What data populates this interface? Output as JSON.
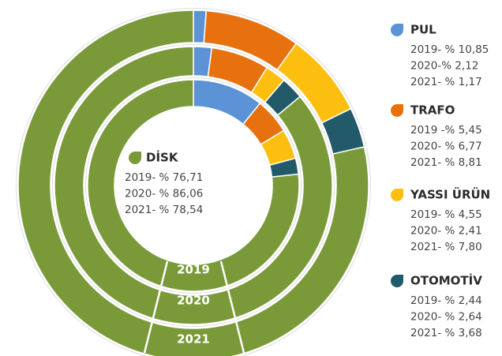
{
  "chart_data": {
    "type": "donut",
    "categories": [
      "2019",
      "2020",
      "2021"
    ],
    "series": [
      {
        "name": "PUL",
        "color": "#5b93d6",
        "values": [
          10.85,
          2.12,
          1.17
        ],
        "value_labels": [
          "2019- % 10,85",
          "2020-% 2,12",
          "2021- % 1,17"
        ]
      },
      {
        "name": "TRAFO",
        "color": "#e8710f",
        "values": [
          5.45,
          6.77,
          8.81
        ],
        "value_labels": [
          "2019 -% 5,45",
          "2020- % 6,77",
          "2021- % 8,81"
        ]
      },
      {
        "name": "YASSI ÜRÜN",
        "color": "#fdbf0f",
        "values": [
          4.55,
          2.41,
          7.8
        ],
        "value_labels": [
          "2019- % 4,55",
          "2020- % 2,41",
          "2021- % 7,80"
        ]
      },
      {
        "name": "OTOMOTİV",
        "color": "#235a6a",
        "values": [
          2.44,
          2.64,
          3.68
        ],
        "value_labels": [
          "2019- % 2,44",
          "2020- % 2,64",
          "2021- % 3,68"
        ]
      },
      {
        "name": "DİSK",
        "color": "#7a9a3a",
        "values": [
          76.71,
          86.06,
          78.54
        ],
        "value_labels": [
          "2019- % 76,71",
          "2020- % 86,06",
          "2021- % 78,54"
        ]
      }
    ]
  }
}
